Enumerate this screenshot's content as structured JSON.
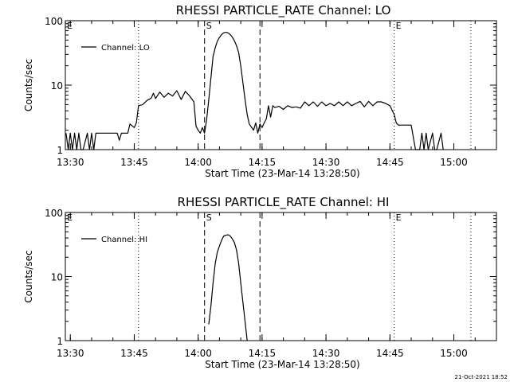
{
  "footer_timestamp": "21-Oct-2021 18:52",
  "chart_data": [
    {
      "type": "line",
      "title": "RHESSI PARTICLE_RATE Channel: LO",
      "xlabel": "Start Time (23-Mar-14 13:28:50)",
      "ylabel": "Counts/sec",
      "xscale": "time",
      "yscale": "log",
      "xlim": [
        "13:28:50",
        "15:10"
      ],
      "ylim": [
        1,
        100
      ],
      "x_ticks": [
        "13:30",
        "13:45",
        "14:00",
        "14:15",
        "14:30",
        "14:45",
        "15:00"
      ],
      "y_ticks": [
        "1",
        "10",
        "100"
      ],
      "legend": {
        "position": "top-left",
        "entries": [
          "Channel: LO"
        ]
      },
      "markers": [
        {
          "label": "E",
          "time": "13:28:50",
          "style": "none"
        },
        {
          "label": "",
          "time": "13:46",
          "style": "dotted"
        },
        {
          "label": "S",
          "time": "14:01:30",
          "style": "dashed"
        },
        {
          "label": "",
          "time": "14:14:30",
          "style": "dashed"
        },
        {
          "label": "E",
          "time": "14:46",
          "style": "dotted"
        },
        {
          "label": "",
          "time": "15:04",
          "style": "dotted"
        }
      ],
      "series": [
        {
          "name": "Channel: LO",
          "points": [
            [
              "13:29",
              "1.8"
            ],
            [
              "13:29:30",
              "1"
            ],
            [
              "13:30",
              "1.8"
            ],
            [
              "13:30:30",
              "1"
            ],
            [
              "13:31",
              "1.8"
            ],
            [
              "13:31:30",
              "1"
            ],
            [
              "13:32",
              "1.8"
            ],
            [
              "13:32:30",
              "1"
            ],
            [
              "13:33",
              "1"
            ],
            [
              "13:34",
              "1.8"
            ],
            [
              "13:34:30",
              "1"
            ],
            [
              "13:35",
              "1.8"
            ],
            [
              "13:35:30",
              "1"
            ],
            [
              "13:36",
              "1.8"
            ],
            [
              "13:41",
              "1.8"
            ],
            [
              "13:41:30",
              "1.4"
            ],
            [
              "13:42",
              "1.8"
            ],
            [
              "13:43:30",
              "1.8"
            ],
            [
              "13:44",
              "2.5"
            ],
            [
              "13:45",
              "2.2"
            ],
            [
              "13:45:30",
              "2.6"
            ],
            [
              "13:46",
              "4.8"
            ],
            [
              "13:47",
              "5"
            ],
            [
              "13:48",
              "5.8"
            ],
            [
              "13:49",
              "6.3"
            ],
            [
              "13:49:30",
              "7.5"
            ],
            [
              "13:50",
              "6.2"
            ],
            [
              "13:51",
              "7.8"
            ],
            [
              "13:52",
              "6.5"
            ],
            [
              "13:53",
              "7.5"
            ],
            [
              "13:54",
              "6.8"
            ],
            [
              "13:55",
              "8.2"
            ],
            [
              "13:56",
              "6"
            ],
            [
              "13:57",
              "8"
            ],
            [
              "13:58",
              "6.8"
            ],
            [
              "13:59",
              "5.5"
            ],
            [
              "13:59:30",
              "2.3"
            ],
            [
              "14:00",
              "2"
            ],
            [
              "14:00:30",
              "1.8"
            ],
            [
              "14:01",
              "2.2"
            ],
            [
              "14:01:30",
              "1.8"
            ],
            [
              "14:02",
              "3"
            ],
            [
              "14:02:30",
              "6"
            ],
            [
              "14:03",
              "13"
            ],
            [
              "14:03:30",
              "28"
            ],
            [
              "14:04",
              "38"
            ],
            [
              "14:04:30",
              "48"
            ],
            [
              "14:05",
              "55"
            ],
            [
              "14:05:30",
              "61"
            ],
            [
              "14:06",
              "65"
            ],
            [
              "14:06:30",
              "66"
            ],
            [
              "14:07",
              "65"
            ],
            [
              "14:07:30",
              "61"
            ],
            [
              "14:08",
              "56"
            ],
            [
              "14:08:30",
              "49"
            ],
            [
              "14:09",
              "41"
            ],
            [
              "14:09:30",
              "32"
            ],
            [
              "14:10",
              "20"
            ],
            [
              "14:10:30",
              "11"
            ],
            [
              "14:11",
              "6"
            ],
            [
              "14:11:30",
              "3.5"
            ],
            [
              "14:12",
              "2.5"
            ],
            [
              "14:13",
              "2"
            ],
            [
              "14:13:30",
              "2.6"
            ],
            [
              "14:14",
              "1.8"
            ],
            [
              "14:14:30",
              "2.5"
            ],
            [
              "14:15",
              "2.2"
            ],
            [
              "14:15:30",
              "2.6"
            ],
            [
              "14:16",
              "3"
            ],
            [
              "14:16:30",
              "4.8"
            ],
            [
              "14:17",
              "3.2"
            ],
            [
              "14:17:30",
              "4.8"
            ],
            [
              "14:18",
              "4.5"
            ],
            [
              "14:19",
              "4.7"
            ],
            [
              "14:20",
              "4.2"
            ],
            [
              "14:21",
              "4.8"
            ],
            [
              "14:22",
              "4.5"
            ],
            [
              "14:23",
              "4.6"
            ],
            [
              "14:24",
              "4.4"
            ],
            [
              "14:25",
              "5.5"
            ],
            [
              "14:26",
              "4.8"
            ],
            [
              "14:27",
              "5.5"
            ],
            [
              "14:28",
              "4.7"
            ],
            [
              "14:29",
              "5.5"
            ],
            [
              "14:30",
              "4.8"
            ],
            [
              "14:31",
              "5.2"
            ],
            [
              "14:32",
              "4.8"
            ],
            [
              "14:33",
              "5.5"
            ],
            [
              "14:34",
              "4.8"
            ],
            [
              "14:35",
              "5.5"
            ],
            [
              "14:36",
              "4.8"
            ],
            [
              "14:37",
              "5.2"
            ],
            [
              "14:38",
              "5.6"
            ],
            [
              "14:39",
              "4.6"
            ],
            [
              "14:40",
              "5.6"
            ],
            [
              "14:41",
              "4.8"
            ],
            [
              "14:42",
              "5.5"
            ],
            [
              "14:43",
              "5.5"
            ],
            [
              "14:44",
              "5.2"
            ],
            [
              "14:45",
              "4.8"
            ],
            [
              "14:46",
              "3.5"
            ],
            [
              "14:46:30",
              "2.6"
            ],
            [
              "14:47",
              "2.4"
            ],
            [
              "14:50",
              "2.4"
            ],
            [
              "14:51",
              "1"
            ],
            [
              "14:52",
              "1"
            ],
            [
              "14:52:30",
              "1.8"
            ],
            [
              "14:53",
              "1"
            ],
            [
              "14:53:30",
              "1.8"
            ],
            [
              "14:54",
              "1"
            ],
            [
              "14:55",
              "1.8"
            ],
            [
              "14:55:30",
              "1"
            ],
            [
              "14:56",
              "1"
            ],
            [
              "14:57",
              "1.8"
            ],
            [
              "14:57:30",
              "1"
            ]
          ]
        }
      ]
    },
    {
      "type": "line",
      "title": "RHESSI PARTICLE_RATE Channel: HI",
      "xlabel": "Start Time (23-Mar-14 13:28:50)",
      "ylabel": "Counts/sec",
      "xscale": "time",
      "yscale": "log",
      "xlim": [
        "13:28:50",
        "15:10"
      ],
      "ylim": [
        1,
        100
      ],
      "x_ticks": [
        "13:30",
        "13:45",
        "14:00",
        "14:15",
        "14:30",
        "14:45",
        "15:00"
      ],
      "y_ticks": [
        "1",
        "10",
        "100"
      ],
      "legend": {
        "position": "top-left",
        "entries": [
          "Channel: HI"
        ]
      },
      "markers": [
        {
          "label": "E",
          "time": "13:28:50",
          "style": "none"
        },
        {
          "label": "",
          "time": "13:46",
          "style": "dotted"
        },
        {
          "label": "S",
          "time": "14:01:30",
          "style": "dashed"
        },
        {
          "label": "",
          "time": "14:14:30",
          "style": "dashed"
        },
        {
          "label": "E",
          "time": "14:46",
          "style": "dotted"
        },
        {
          "label": "",
          "time": "15:04",
          "style": "dotted"
        }
      ],
      "series": [
        {
          "name": "Channel: HI",
          "points": [
            [
              "14:02:30",
              "1.8"
            ],
            [
              "14:03",
              "3.5"
            ],
            [
              "14:03:30",
              "8"
            ],
            [
              "14:04",
              "16"
            ],
            [
              "14:04:30",
              "24"
            ],
            [
              "14:05",
              "30"
            ],
            [
              "14:05:30",
              "37"
            ],
            [
              "14:06",
              "43"
            ],
            [
              "14:06:30",
              "44"
            ],
            [
              "14:07",
              "45"
            ],
            [
              "14:07:30",
              "43"
            ],
            [
              "14:08",
              "39"
            ],
            [
              "14:08:30",
              "34"
            ],
            [
              "14:09",
              "26"
            ],
            [
              "14:09:30",
              "16"
            ],
            [
              "14:10",
              "8"
            ],
            [
              "14:10:30",
              "4"
            ],
            [
              "14:11",
              "2"
            ],
            [
              "14:11:30",
              "1"
            ]
          ]
        }
      ]
    }
  ]
}
